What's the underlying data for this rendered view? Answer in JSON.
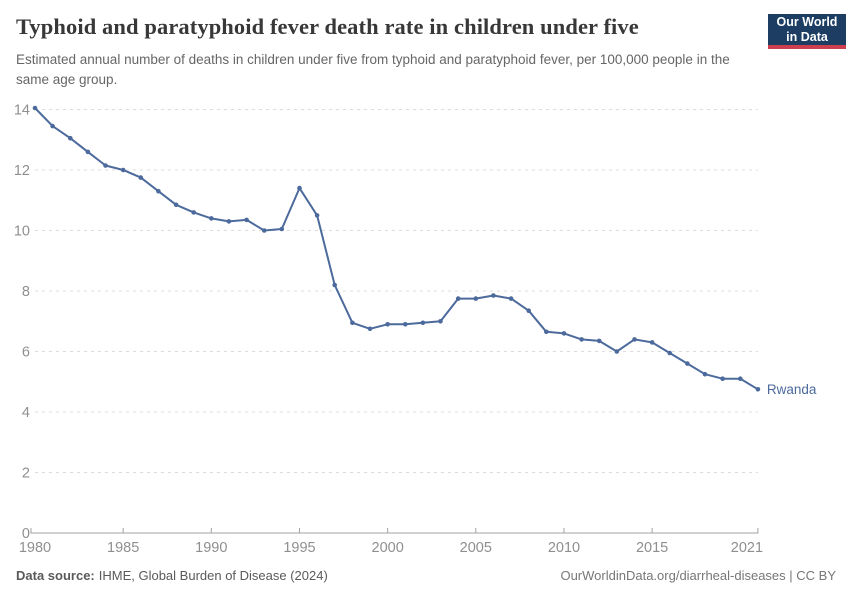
{
  "header": {
    "title": "Typhoid and paratyphoid fever death rate in children under five",
    "subtitle": "Estimated annual number of deaths in children under five from typhoid and paratyphoid fever, per 100,000 people in the same age group.",
    "logo": {
      "line1": "Our World",
      "line2": "in Data"
    }
  },
  "footer": {
    "source_label": "Data source:",
    "source_text": "IHME, Global Burden of Disease (2024)",
    "credit": "OurWorldinData.org/diarrheal-diseases | CC BY"
  },
  "colors": {
    "title": "#383838",
    "subtitle": "#666666",
    "line": "#4c6a9c",
    "end_label": "#4c6a9c",
    "grid": "#dcdcdc",
    "axis": "#a3a3a3",
    "tick_label": "#8f8f8f",
    "logo_bg": "#1d3d63",
    "logo_bar": "#cd3e4e",
    "footer_left": "#5a5a5a",
    "footer_right": "#777777"
  },
  "chart_data": {
    "type": "line",
    "title": "Typhoid and paratyphoid fever death rate in children under five",
    "xlabel": "",
    "ylabel": "",
    "xlim": [
      1980,
      2021
    ],
    "ylim": [
      0,
      14
    ],
    "x_ticks": [
      1980,
      1985,
      1990,
      1995,
      2000,
      2005,
      2010,
      2015,
      2021
    ],
    "y_ticks": [
      0,
      2,
      4,
      6,
      8,
      10,
      12,
      14
    ],
    "grid": "horizontal-dashed",
    "legend": "line-end-label",
    "series": [
      {
        "name": "Rwanda",
        "color": "#4c6a9c",
        "x": [
          1980,
          1981,
          1982,
          1983,
          1984,
          1985,
          1986,
          1987,
          1988,
          1989,
          1990,
          1991,
          1992,
          1993,
          1994,
          1995,
          1996,
          1997,
          1998,
          1999,
          2000,
          2001,
          2002,
          2003,
          2004,
          2005,
          2006,
          2007,
          2008,
          2009,
          2010,
          2011,
          2012,
          2013,
          2014,
          2015,
          2016,
          2017,
          2018,
          2019,
          2020,
          2021
        ],
        "values": [
          14.05,
          13.45,
          13.05,
          12.6,
          12.15,
          12.0,
          11.75,
          11.3,
          10.85,
          10.6,
          10.4,
          10.3,
          10.35,
          10.0,
          10.05,
          11.4,
          10.5,
          8.2,
          6.95,
          6.75,
          6.9,
          6.9,
          6.95,
          7.0,
          7.75,
          7.75,
          7.85,
          7.75,
          7.35,
          6.65,
          6.6,
          6.4,
          6.35,
          6.0,
          6.4,
          6.3,
          5.95,
          5.6,
          5.25,
          5.1,
          5.1,
          4.75
        ]
      }
    ]
  }
}
